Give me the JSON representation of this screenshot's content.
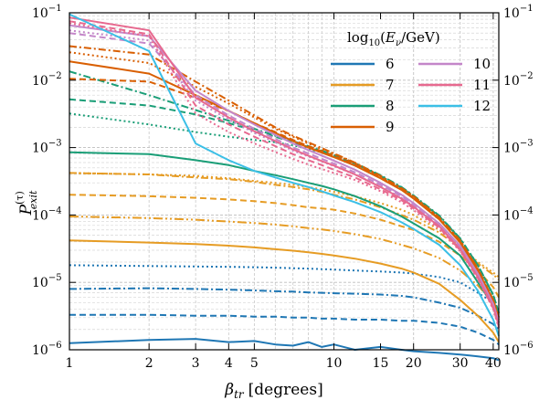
{
  "chart_data": {
    "type": "line",
    "x_axis": {
      "label_main": "β",
      "label_sub": "tr",
      "label_unit": "[degrees]",
      "scale": "log",
      "range": [
        1,
        42
      ],
      "tick_values": [
        1,
        2,
        3,
        4,
        5,
        10,
        15,
        20,
        30,
        40
      ],
      "tick_labels": [
        "1",
        "2",
        "3",
        "4",
        "5",
        "10",
        "15",
        "20",
        "30",
        "40"
      ]
    },
    "y_axis": {
      "label_main": "P",
      "label_sup": "(τ)",
      "label_sub": "exit",
      "scale": "log",
      "range": [
        1e-06,
        0.1
      ],
      "tick_values": [
        1e-06,
        1e-05,
        0.0001,
        0.001,
        0.01,
        0.1
      ],
      "tick_labels": [
        "10",
        "10",
        "10",
        "10",
        "10",
        "10"
      ],
      "tick_exponents": [
        "−6",
        "−5",
        "−4",
        "−3",
        "−2",
        "−1"
      ]
    },
    "grid": true,
    "legend": {
      "placement": "top-right",
      "title": "log10(Eν/GeV)",
      "title_parts": {
        "fn": "log",
        "fn_sub": "10",
        "open": "(",
        "num": "E",
        "num_sub": "ν",
        "div": "/GeV)"
      },
      "entries": [
        {
          "label": "6",
          "color": "#1f77b4"
        },
        {
          "label": "7",
          "color": "#e69c24"
        },
        {
          "label": "8",
          "color": "#1a9e77"
        },
        {
          "label": "9",
          "color": "#d95f02"
        },
        {
          "label": "10",
          "color": "#c486c9"
        },
        {
          "label": "11",
          "color": "#e7698f"
        },
        {
          "label": "12",
          "color": "#3bbfe6"
        }
      ]
    },
    "x": [
      1,
      2,
      3,
      4,
      5,
      6,
      7,
      8,
      9,
      10,
      12,
      15,
      18,
      20,
      25,
      30,
      35,
      40,
      42
    ],
    "series": [
      {
        "energy": "6",
        "color": "#1f77b4",
        "dash": "dotted",
        "values": [
          1.8e-05,
          1.75e-05,
          1.72e-05,
          1.7e-05,
          1.68e-05,
          1.65e-05,
          1.62e-05,
          1.6e-05,
          1.57e-05,
          1.55e-05,
          1.5e-05,
          1.45e-05,
          1.4e-05,
          1.35e-05,
          1.2e-05,
          1e-05,
          7e-06,
          5e-06,
          4e-06
        ]
      },
      {
        "energy": "6",
        "color": "#1f77b4",
        "dash": "dashdot",
        "values": [
          8e-06,
          8.2e-06,
          8e-06,
          7.8e-06,
          7.6e-06,
          7.4e-06,
          7.3e-06,
          7.1e-06,
          7e-06,
          6.9e-06,
          6.8e-06,
          6.6e-06,
          6.3e-06,
          6e-06,
          5e-06,
          4.2e-06,
          3.2e-06,
          2.4e-06,
          2e-06
        ]
      },
      {
        "energy": "6",
        "color": "#1f77b4",
        "dash": "dashed",
        "values": [
          3.3e-06,
          3.3e-06,
          3.2e-06,
          3.2e-06,
          3.1e-06,
          3.1e-06,
          3e-06,
          3e-06,
          2.9e-06,
          2.9e-06,
          2.8e-06,
          2.8e-06,
          2.7e-06,
          2.7e-06,
          2.5e-06,
          2.2e-06,
          1.8e-06,
          1.4e-06,
          1.2e-06
        ]
      },
      {
        "energy": "6",
        "color": "#1f77b4",
        "dash": "solid",
        "values": [
          1.25e-06,
          1.4e-06,
          1.45e-06,
          1.3e-06,
          1.35e-06,
          1.2e-06,
          1.15e-06,
          1.3e-06,
          1.1e-06,
          1.2e-06,
          1e-06,
          1.1e-06,
          1e-06,
          9.5e-07,
          9e-07,
          8.5e-07,
          8e-07,
          7.5e-07,
          7e-07
        ]
      },
      {
        "energy": "7",
        "color": "#e69c24",
        "dash": "dotted",
        "values": [
          0.00042,
          0.0004,
          0.00038,
          0.00035,
          0.00032,
          0.0003,
          0.00028,
          0.00026,
          0.00024,
          0.00022,
          0.00019,
          0.00015,
          0.00012,
          0.0001,
          6e-05,
          3.5e-05,
          2e-05,
          1.4e-05,
          1.2e-05
        ]
      },
      {
        "energy": "7",
        "color": "#e69c24",
        "dash": "dashdot",
        "values": [
          0.00042,
          0.0004,
          0.00036,
          0.00034,
          0.00031,
          0.00028,
          0.00026,
          0.00024,
          0.00022,
          0.0002,
          0.00017,
          0.00013,
          0.0001,
          8.5e-05,
          5.5e-05,
          3.2e-05,
          1.9e-05,
          1.3e-05,
          1.1e-05
        ]
      },
      {
        "energy": "7",
        "color": "#e69c24",
        "dash": "dashed",
        "values": [
          0.0002,
          0.00019,
          0.00018,
          0.00017,
          0.00016,
          0.00015,
          0.00014,
          0.00013,
          0.000125,
          0.00012,
          0.000105,
          8.5e-05,
          6.8e-05,
          6e-05,
          4e-05,
          2.5e-05,
          1.5e-05,
          8.5e-06,
          6e-06
        ]
      },
      {
        "energy": "7",
        "color": "#e69c24",
        "dash": "dashdot2",
        "values": [
          9.5e-05,
          9e-05,
          8.5e-05,
          8e-05,
          7.6e-05,
          7.2e-05,
          6.8e-05,
          6.4e-05,
          6.1e-05,
          5.8e-05,
          5.2e-05,
          4.4e-05,
          3.6e-05,
          3.2e-05,
          2.3e-05,
          1.5e-05,
          9e-06,
          5e-06,
          3.5e-06
        ]
      },
      {
        "energy": "7",
        "color": "#e69c24",
        "dash": "solid",
        "values": [
          4.2e-05,
          3.9e-05,
          3.7e-05,
          3.5e-05,
          3.3e-05,
          3.1e-05,
          2.95e-05,
          2.8e-05,
          2.65e-05,
          2.5e-05,
          2.25e-05,
          1.9e-05,
          1.6e-05,
          1.4e-05,
          9.5e-06,
          5.5e-06,
          3.2e-06,
          1.8e-06,
          1.3e-06
        ]
      },
      {
        "energy": "8",
        "color": "#1a9e77",
        "dash": "dotted",
        "values": [
          0.0032,
          0.0022,
          0.0017,
          0.00145,
          0.0013,
          0.0012,
          0.00108,
          0.00095,
          0.00085,
          0.00075,
          0.00058,
          0.00038,
          0.00025,
          0.00019,
          9.5e-05,
          4.5e-05,
          1.8e-05,
          6.5e-06,
          3.5e-06
        ]
      },
      {
        "energy": "8",
        "color": "#1a9e77",
        "dash": "dashdot",
        "values": [
          0.0135,
          0.006,
          0.0036,
          0.0025,
          0.0019,
          0.0015,
          0.00125,
          0.00105,
          0.0009,
          0.00078,
          0.00059,
          0.00039,
          0.00026,
          0.000195,
          9.8e-05,
          4.5e-05,
          1.8e-05,
          6.5e-06,
          3.5e-06
        ]
      },
      {
        "energy": "8",
        "color": "#1a9e77",
        "dash": "dashed",
        "values": [
          0.0052,
          0.0042,
          0.0031,
          0.0023,
          0.0018,
          0.00145,
          0.0012,
          0.00102,
          0.00088,
          0.00076,
          0.00058,
          0.00038,
          0.000255,
          0.00019,
          9.6e-05,
          4.4e-05,
          1.8e-05,
          6.5e-06,
          3.5e-06
        ]
      },
      {
        "energy": "8",
        "color": "#1a9e77",
        "dash": "solid",
        "values": [
          0.00085,
          0.0008,
          0.00065,
          0.00055,
          0.00045,
          0.00039,
          0.00034,
          0.0003,
          0.00027,
          0.00024,
          0.00019,
          0.000135,
          9.5e-05,
          7.5e-05,
          4.5e-05,
          2.5e-05,
          1e-05,
          4.5e-06,
          2.5e-06
        ]
      },
      {
        "energy": "9",
        "color": "#d95f02",
        "dash": "dashdot",
        "values": [
          0.032,
          0.024,
          0.0095,
          0.005,
          0.003,
          0.002,
          0.0015,
          0.0012,
          0.00098,
          0.00082,
          0.0006,
          0.00038,
          0.00025,
          0.00019,
          9.2e-05,
          4.2e-05,
          1.6e-05,
          5.5e-06,
          3e-06
        ]
      },
      {
        "energy": "9",
        "color": "#d95f02",
        "dash": "dotted",
        "values": [
          0.026,
          0.018,
          0.008,
          0.0045,
          0.0028,
          0.0019,
          0.00145,
          0.00115,
          0.00095,
          0.0008,
          0.00059,
          0.00037,
          0.000245,
          0.000185,
          9e-05,
          4.1e-05,
          1.6e-05,
          5.5e-06,
          3e-06
        ]
      },
      {
        "energy": "9",
        "color": "#d95f02",
        "dash": "dashed",
        "values": [
          0.0105,
          0.0095,
          0.0055,
          0.0035,
          0.0023,
          0.0017,
          0.0013,
          0.00105,
          0.00088,
          0.00075,
          0.00056,
          0.00036,
          0.00024,
          0.00018,
          8.8e-05,
          4e-05,
          1.55e-05,
          5.5e-06,
          3e-06
        ]
      },
      {
        "energy": "9",
        "color": "#d95f02",
        "dash": "solid",
        "values": [
          0.019,
          0.0125,
          0.006,
          0.0035,
          0.0023,
          0.00165,
          0.00125,
          0.001,
          0.00084,
          0.00072,
          0.00054,
          0.00035,
          0.000235,
          0.000175,
          8.6e-05,
          3.9e-05,
          1.5e-05,
          5.2e-06,
          2.8e-06
        ]
      },
      {
        "energy": "10",
        "color": "#c486c9",
        "dash": "solid",
        "values": [
          0.065,
          0.045,
          0.007,
          0.0035,
          0.0022,
          0.00155,
          0.00115,
          0.00092,
          0.00076,
          0.00064,
          0.00047,
          0.0003,
          0.0002,
          0.00015,
          7.5e-05,
          3.5e-05,
          1.35e-05,
          4.8e-06,
          2.6e-06
        ]
      },
      {
        "energy": "10",
        "color": "#c486c9",
        "dash": "dashed",
        "values": [
          0.05,
          0.035,
          0.006,
          0.003,
          0.0019,
          0.00135,
          0.001,
          0.00082,
          0.00068,
          0.00058,
          0.00043,
          0.00028,
          0.00019,
          0.000142,
          7.2e-05,
          3.3e-05,
          1.3e-05,
          4.6e-06,
          2.5e-06
        ]
      },
      {
        "energy": "10",
        "color": "#c486c9",
        "dash": "dotted",
        "values": [
          0.055,
          0.039,
          0.005,
          0.0026,
          0.00165,
          0.0012,
          0.0009,
          0.00074,
          0.00062,
          0.00053,
          0.0004,
          0.000265,
          0.00018,
          0.000135,
          6.9e-05,
          3.2e-05,
          1.25e-05,
          4.4e-06,
          2.4e-06
        ]
      },
      {
        "energy": "11",
        "color": "#e7698f",
        "dash": "solid",
        "values": [
          0.085,
          0.055,
          0.0055,
          0.0028,
          0.00175,
          0.00125,
          0.00094,
          0.00076,
          0.00063,
          0.00054,
          0.0004,
          0.00026,
          0.000175,
          0.000132,
          6.8e-05,
          3.1e-05,
          1.2e-05,
          4.3e-06,
          2.3e-06
        ]
      },
      {
        "energy": "11",
        "color": "#e7698f",
        "dash": "dashed",
        "values": [
          0.075,
          0.048,
          0.0042,
          0.0022,
          0.00145,
          0.00105,
          0.0008,
          0.00065,
          0.00055,
          0.00047,
          0.00036,
          0.00024,
          0.000165,
          0.000125,
          6.5e-05,
          3e-05,
          1.15e-05,
          4.1e-06,
          2.2e-06
        ]
      },
      {
        "energy": "11",
        "color": "#e7698f",
        "dash": "dotted",
        "values": [
          0.07,
          0.045,
          0.0032,
          0.0017,
          0.00115,
          0.00086,
          0.00068,
          0.00056,
          0.00048,
          0.00042,
          0.00033,
          0.000225,
          0.000155,
          0.000118,
          6.2e-05,
          2.9e-05,
          1.12e-05,
          4e-06,
          2.1e-06
        ]
      },
      {
        "energy": "12",
        "color": "#3bbfe6",
        "dash": "solid",
        "values": [
          0.095,
          0.027,
          0.00115,
          0.00065,
          0.00045,
          0.00036,
          0.0003,
          0.00026,
          0.000225,
          0.000195,
          0.000155,
          0.00011,
          7.8e-05,
          6.2e-05,
          3.6e-05,
          1.8e-05,
          7.5e-06,
          2.8e-06,
          1.6e-06
        ]
      }
    ]
  }
}
